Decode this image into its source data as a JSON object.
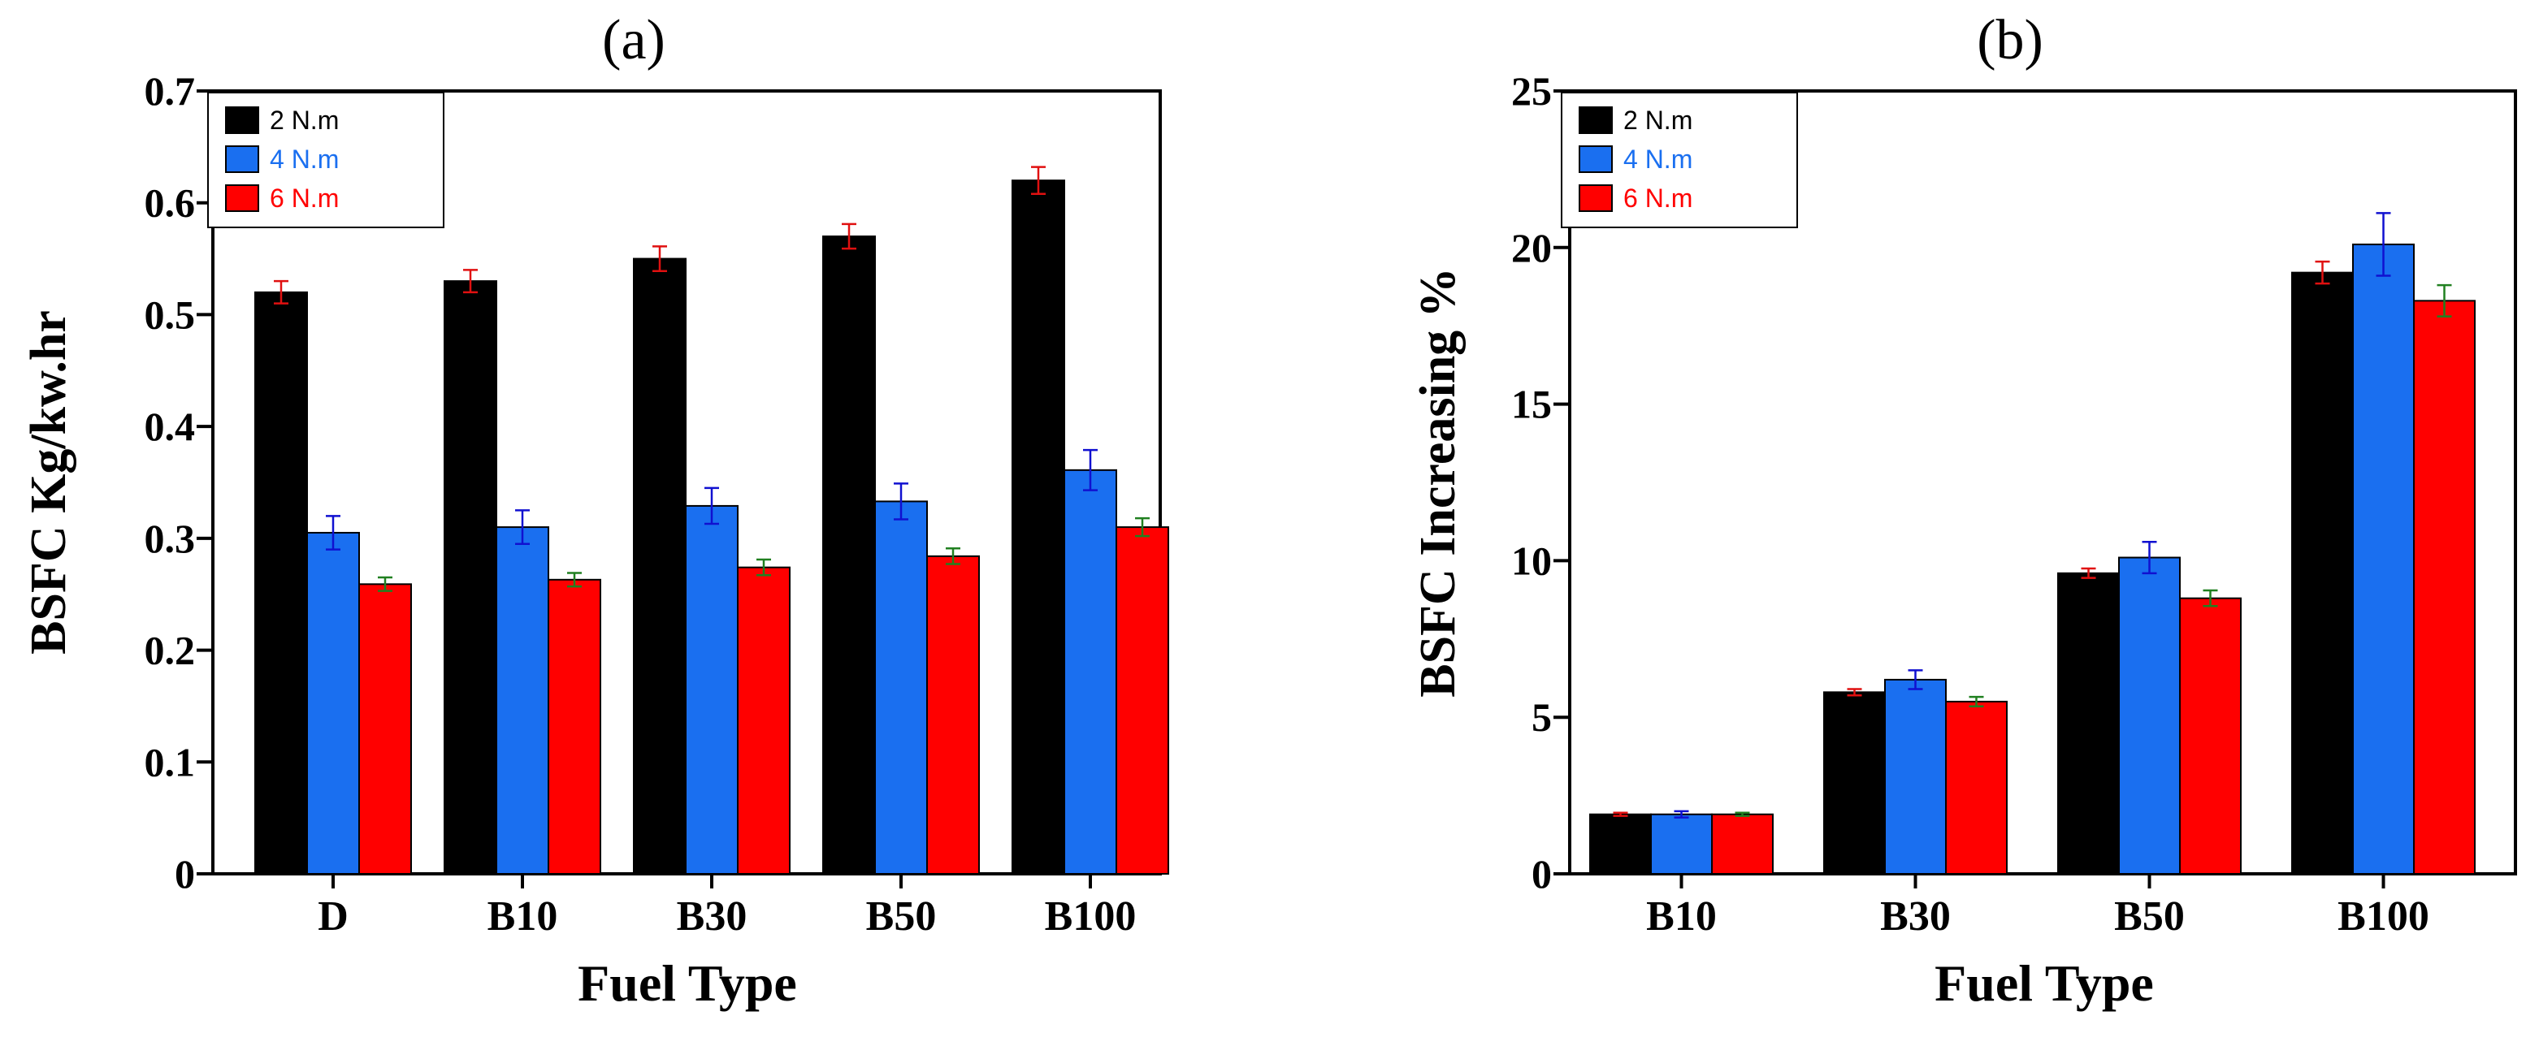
{
  "chart_data": [
    {
      "type": "bar",
      "panel_label": "(a)",
      "title": "",
      "xlabel": "Fuel Type",
      "ylabel": "BSFC Kg/kw.hr",
      "ylim": [
        0,
        0.7
      ],
      "yticks": [
        "0",
        "0.1",
        "0.2",
        "0.3",
        "0.4",
        "0.5",
        "0.6",
        "0.7"
      ],
      "categories": [
        "D",
        "B10",
        "B30",
        "B50",
        "B100"
      ],
      "legend_position": "top-left",
      "grid": false,
      "series": [
        {
          "name": "2  N.m",
          "color": "#000000",
          "error_color": "#e01010",
          "values": [
            0.52,
            0.53,
            0.55,
            0.57,
            0.62
          ],
          "errors": [
            0.01,
            0.01,
            0.011,
            0.011,
            0.012
          ]
        },
        {
          "name": "4 N.m",
          "color": "#1a6ff0",
          "error_color": "#1010d0",
          "values": [
            0.305,
            0.31,
            0.329,
            0.333,
            0.361
          ],
          "errors": [
            0.015,
            0.015,
            0.016,
            0.016,
            0.018
          ]
        },
        {
          "name": "6 N.m",
          "color": "#ff0000",
          "error_color": "#208020",
          "values": [
            0.259,
            0.263,
            0.274,
            0.284,
            0.31
          ],
          "errors": [
            0.006,
            0.006,
            0.007,
            0.007,
            0.008
          ]
        }
      ]
    },
    {
      "type": "bar",
      "panel_label": "(b)",
      "title": "",
      "xlabel": "Fuel Type",
      "ylabel": "BSFC Increasing %",
      "ylim": [
        0,
        25
      ],
      "yticks": [
        "0",
        "5",
        "10",
        "15",
        "20",
        "25"
      ],
      "categories": [
        "B10",
        "B30",
        "B50",
        "B100"
      ],
      "legend_position": "top-left",
      "grid": false,
      "series": [
        {
          "name": "2  N.m",
          "color": "#000000",
          "error_color": "#e01010",
          "values": [
            1.9,
            5.8,
            9.6,
            19.2
          ],
          "errors": [
            0.05,
            0.1,
            0.15,
            0.35
          ]
        },
        {
          "name": "4 N.m",
          "color": "#1a6ff0",
          "error_color": "#1010d0",
          "values": [
            1.9,
            6.2,
            10.1,
            20.1
          ],
          "errors": [
            0.1,
            0.3,
            0.5,
            1.0
          ]
        },
        {
          "name": "6 N.m",
          "color": "#ff0000",
          "error_color": "#208020",
          "values": [
            1.9,
            5.5,
            8.8,
            18.3
          ],
          "errors": [
            0.05,
            0.15,
            0.25,
            0.5
          ]
        }
      ]
    }
  ]
}
